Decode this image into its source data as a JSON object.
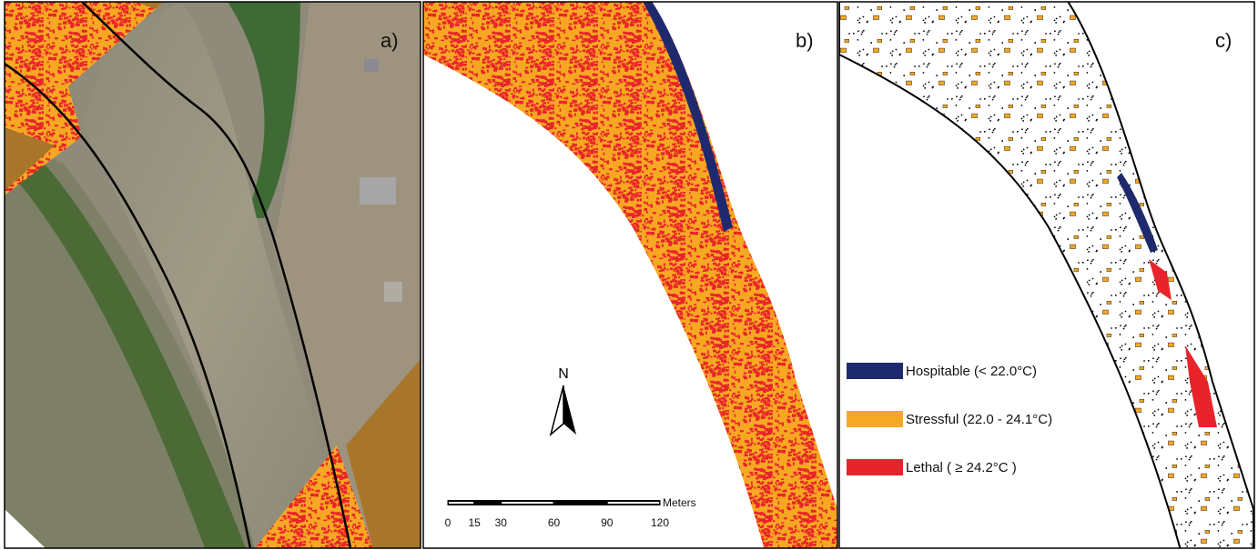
{
  "panels": [
    {
      "label": "a)"
    },
    {
      "label": "b)"
    },
    {
      "label": "c)"
    }
  ],
  "north_arrow": {
    "label": "N"
  },
  "scale_bar": {
    "unit": "Meters",
    "ticks": [
      0,
      15,
      30,
      60,
      90,
      120
    ]
  },
  "legend": {
    "items": [
      {
        "label": "Hospitable (< 22.0°C)",
        "color": "#1f2a6e"
      },
      {
        "label": "Stressful (22.0 - 24.1°C)",
        "color": "#f7a823"
      },
      {
        "label": "Lethal ( ≥ 24.2°C )",
        "color": "#e8242a"
      }
    ]
  }
}
